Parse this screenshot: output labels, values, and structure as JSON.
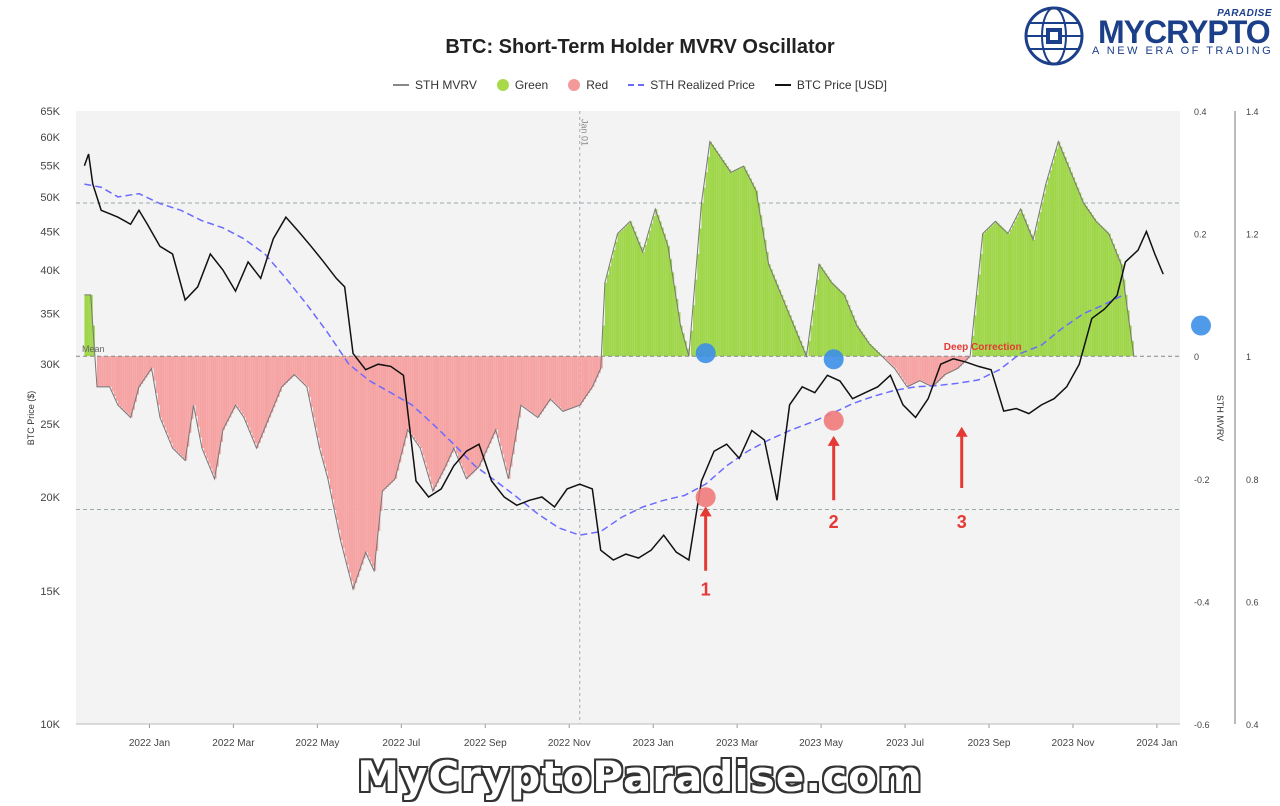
{
  "chart_data": {
    "type": "area",
    "title": "BTC: Short-Term Holder MVRV Oscillator",
    "legend": [
      {
        "label": "STH MVRV",
        "color": "#888888",
        "kind": "line"
      },
      {
        "label": "Green",
        "color": "#a8d94a",
        "kind": "dot"
      },
      {
        "label": "Red",
        "color": "#f4999a",
        "kind": "dot"
      },
      {
        "label": "STH Realized Price",
        "color": "#6b6bff",
        "kind": "dash"
      },
      {
        "label": "BTC Price [USD]",
        "color": "#111111",
        "kind": "line"
      }
    ],
    "legend_position": "top-center",
    "x_ticks": [
      "2022 Jan",
      "2022 Mar",
      "2022 May",
      "2022 Jul",
      "2022 Sep",
      "2022 Nov",
      "2023 Jan",
      "2023 Mar",
      "2023 May",
      "2023 Jul",
      "2023 Sep",
      "2023 Nov",
      "2024 Jan"
    ],
    "y_left": {
      "label": "BTC Price ($)",
      "scale": "log",
      "range": [
        10000,
        65000
      ],
      "ticks": [
        {
          "v": 10000,
          "t": "10K"
        },
        {
          "v": 15000,
          "t": "15K"
        },
        {
          "v": 20000,
          "t": "20K"
        },
        {
          "v": 25000,
          "t": "25K"
        },
        {
          "v": 30000,
          "t": "30K"
        },
        {
          "v": 35000,
          "t": "35K"
        },
        {
          "v": 40000,
          "t": "40K"
        },
        {
          "v": 45000,
          "t": "45K"
        },
        {
          "v": 50000,
          "t": "50K"
        },
        {
          "v": 55000,
          "t": "55K"
        },
        {
          "v": 60000,
          "t": "60K"
        },
        {
          "v": 65000,
          "t": "65K"
        }
      ]
    },
    "y_right_oscillator": {
      "label": "STH MVRV",
      "range": [
        -0.6,
        0.4
      ],
      "ticks": [
        "0.4",
        "0.2",
        "0",
        "-0.2",
        "-0.4",
        "-0.6"
      ]
    },
    "y_right_ratio": {
      "range": [
        0.4,
        1.4
      ],
      "ticks": [
        "1.4",
        "1.2",
        "1",
        "0.8",
        "0.6",
        "0.4"
      ]
    },
    "reference_lines": {
      "upper": 0.25,
      "mean": 0,
      "lower": -0.25,
      "mean_label": "Mean"
    },
    "vertical_marker": {
      "x": 12.0,
      "label": "Jan 01"
    },
    "sth_mvrv": [
      [
        0.2,
        0.1
      ],
      [
        0.35,
        0.1
      ],
      [
        0.5,
        -0.05
      ],
      [
        0.8,
        -0.05
      ],
      [
        1.0,
        -0.08
      ],
      [
        1.3,
        -0.1
      ],
      [
        1.5,
        -0.05
      ],
      [
        1.8,
        -0.02
      ],
      [
        2.0,
        -0.1
      ],
      [
        2.3,
        -0.15
      ],
      [
        2.6,
        -0.17
      ],
      [
        2.8,
        -0.08
      ],
      [
        3.0,
        -0.15
      ],
      [
        3.3,
        -0.2
      ],
      [
        3.5,
        -0.12
      ],
      [
        3.8,
        -0.08
      ],
      [
        4.0,
        -0.1
      ],
      [
        4.3,
        -0.15
      ],
      [
        4.6,
        -0.1
      ],
      [
        4.9,
        -0.05
      ],
      [
        5.2,
        -0.03
      ],
      [
        5.5,
        -0.05
      ],
      [
        5.8,
        -0.15
      ],
      [
        6.0,
        -0.2
      ],
      [
        6.3,
        -0.3
      ],
      [
        6.6,
        -0.38
      ],
      [
        6.9,
        -0.32
      ],
      [
        7.1,
        -0.35
      ],
      [
        7.3,
        -0.22
      ],
      [
        7.6,
        -0.2
      ],
      [
        7.9,
        -0.12
      ],
      [
        8.2,
        -0.15
      ],
      [
        8.5,
        -0.22
      ],
      [
        8.8,
        -0.18
      ],
      [
        9.0,
        -0.15
      ],
      [
        9.3,
        -0.2
      ],
      [
        9.6,
        -0.18
      ],
      [
        10.0,
        -0.12
      ],
      [
        10.3,
        -0.2
      ],
      [
        10.6,
        -0.08
      ],
      [
        11.0,
        -0.1
      ],
      [
        11.3,
        -0.07
      ],
      [
        11.6,
        -0.09
      ],
      [
        12.0,
        -0.08
      ],
      [
        12.3,
        -0.05
      ],
      [
        12.5,
        -0.02
      ],
      [
        12.6,
        0.12
      ],
      [
        12.9,
        0.2
      ],
      [
        13.2,
        0.22
      ],
      [
        13.5,
        0.17
      ],
      [
        13.8,
        0.24
      ],
      [
        14.1,
        0.18
      ],
      [
        14.4,
        0.05
      ],
      [
        14.6,
        0.0
      ],
      [
        14.9,
        0.25
      ],
      [
        15.1,
        0.35
      ],
      [
        15.3,
        0.33
      ],
      [
        15.6,
        0.3
      ],
      [
        15.9,
        0.31
      ],
      [
        16.2,
        0.27
      ],
      [
        16.5,
        0.15
      ],
      [
        16.8,
        0.1
      ],
      [
        17.1,
        0.05
      ],
      [
        17.4,
        0.0
      ],
      [
        17.7,
        0.15
      ],
      [
        18.0,
        0.12
      ],
      [
        18.3,
        0.1
      ],
      [
        18.6,
        0.05
      ],
      [
        18.9,
        0.02
      ],
      [
        19.2,
        0.0
      ],
      [
        19.5,
        -0.02
      ],
      [
        19.8,
        -0.05
      ],
      [
        20.1,
        -0.04
      ],
      [
        20.4,
        -0.05
      ],
      [
        20.7,
        -0.03
      ],
      [
        21.0,
        -0.02
      ],
      [
        21.3,
        0.0
      ],
      [
        21.6,
        0.2
      ],
      [
        21.9,
        0.22
      ],
      [
        22.2,
        0.2
      ],
      [
        22.5,
        0.24
      ],
      [
        22.8,
        0.19
      ],
      [
        23.1,
        0.28
      ],
      [
        23.4,
        0.35
      ],
      [
        23.7,
        0.3
      ],
      [
        24.0,
        0.25
      ],
      [
        24.3,
        0.22
      ],
      [
        24.6,
        0.2
      ],
      [
        24.9,
        0.15
      ],
      [
        25.2,
        0.0
      ]
    ],
    "sth_realized_price": [
      [
        0.2,
        52000
      ],
      [
        0.6,
        51500
      ],
      [
        1.0,
        50000
      ],
      [
        1.5,
        50500
      ],
      [
        2.0,
        49000
      ],
      [
        2.5,
        48000
      ],
      [
        3.0,
        46500
      ],
      [
        3.5,
        45500
      ],
      [
        4.0,
        44000
      ],
      [
        4.5,
        42000
      ],
      [
        5.0,
        39000
      ],
      [
        5.5,
        36000
      ],
      [
        6.0,
        33000
      ],
      [
        6.5,
        30000
      ],
      [
        7.0,
        28500
      ],
      [
        7.5,
        27500
      ],
      [
        8.0,
        26500
      ],
      [
        8.5,
        25000
      ],
      [
        9.0,
        23500
      ],
      [
        9.5,
        22000
      ],
      [
        10.0,
        21000
      ],
      [
        10.5,
        20000
      ],
      [
        11.0,
        19000
      ],
      [
        11.5,
        18200
      ],
      [
        12.0,
        17800
      ],
      [
        12.5,
        18000
      ],
      [
        13.0,
        18800
      ],
      [
        13.5,
        19400
      ],
      [
        14.0,
        19800
      ],
      [
        14.5,
        20100
      ],
      [
        15.0,
        20800
      ],
      [
        15.5,
        22000
      ],
      [
        16.0,
        23000
      ],
      [
        16.5,
        23800
      ],
      [
        17.0,
        24500
      ],
      [
        17.5,
        25100
      ],
      [
        18.0,
        25800
      ],
      [
        18.5,
        26600
      ],
      [
        19.0,
        27200
      ],
      [
        19.5,
        27700
      ],
      [
        20.0,
        28000
      ],
      [
        20.5,
        28100
      ],
      [
        21.0,
        28300
      ],
      [
        21.5,
        28600
      ],
      [
        22.0,
        29500
      ],
      [
        22.5,
        31000
      ],
      [
        23.0,
        31800
      ],
      [
        23.5,
        33500
      ],
      [
        24.0,
        35000
      ],
      [
        24.5,
        36000
      ],
      [
        25.0,
        37200
      ]
    ],
    "btc_price": [
      [
        0.2,
        55000
      ],
      [
        0.3,
        57000
      ],
      [
        0.4,
        52000
      ],
      [
        0.6,
        48000
      ],
      [
        0.8,
        47500
      ],
      [
        1.0,
        47000
      ],
      [
        1.3,
        46000
      ],
      [
        1.5,
        48000
      ],
      [
        1.7,
        46000
      ],
      [
        2.0,
        43000
      ],
      [
        2.3,
        42000
      ],
      [
        2.6,
        36500
      ],
      [
        2.9,
        38000
      ],
      [
        3.2,
        42000
      ],
      [
        3.5,
        40000
      ],
      [
        3.8,
        37500
      ],
      [
        4.1,
        41000
      ],
      [
        4.4,
        39000
      ],
      [
        4.7,
        44000
      ],
      [
        5.0,
        47000
      ],
      [
        5.3,
        45000
      ],
      [
        5.6,
        43000
      ],
      [
        5.9,
        41000
      ],
      [
        6.2,
        39000
      ],
      [
        6.4,
        38000
      ],
      [
        6.6,
        31000
      ],
      [
        6.9,
        29500
      ],
      [
        7.2,
        30000
      ],
      [
        7.5,
        29800
      ],
      [
        7.8,
        29000
      ],
      [
        8.1,
        21000
      ],
      [
        8.4,
        20000
      ],
      [
        8.7,
        20500
      ],
      [
        9.0,
        22000
      ],
      [
        9.3,
        23000
      ],
      [
        9.6,
        23500
      ],
      [
        9.9,
        21000
      ],
      [
        10.2,
        20000
      ],
      [
        10.5,
        19500
      ],
      [
        10.8,
        19800
      ],
      [
        11.1,
        20000
      ],
      [
        11.4,
        19400
      ],
      [
        11.7,
        20500
      ],
      [
        12.0,
        20800
      ],
      [
        12.3,
        20500
      ],
      [
        12.5,
        17000
      ],
      [
        12.8,
        16500
      ],
      [
        13.1,
        16800
      ],
      [
        13.4,
        16600
      ],
      [
        13.7,
        17000
      ],
      [
        14.0,
        17800
      ],
      [
        14.3,
        16900
      ],
      [
        14.6,
        16500
      ],
      [
        14.9,
        21000
      ],
      [
        15.2,
        23000
      ],
      [
        15.5,
        23500
      ],
      [
        15.8,
        22500
      ],
      [
        16.1,
        24500
      ],
      [
        16.4,
        23800
      ],
      [
        16.7,
        19800
      ],
      [
        17.0,
        26500
      ],
      [
        17.3,
        28000
      ],
      [
        17.6,
        27500
      ],
      [
        17.9,
        29000
      ],
      [
        18.2,
        28500
      ],
      [
        18.5,
        27000
      ],
      [
        18.8,
        27500
      ],
      [
        19.1,
        28000
      ],
      [
        19.4,
        29000
      ],
      [
        19.7,
        26500
      ],
      [
        20.0,
        25500
      ],
      [
        20.3,
        27000
      ],
      [
        20.6,
        30000
      ],
      [
        20.9,
        30500
      ],
      [
        21.2,
        30200
      ],
      [
        21.5,
        29800
      ],
      [
        21.8,
        29500
      ],
      [
        22.1,
        26000
      ],
      [
        22.4,
        26200
      ],
      [
        22.7,
        25800
      ],
      [
        23.0,
        26500
      ],
      [
        23.3,
        27000
      ],
      [
        23.6,
        28000
      ],
      [
        23.9,
        30000
      ],
      [
        24.2,
        34500
      ],
      [
        24.5,
        35500
      ],
      [
        24.8,
        37000
      ],
      [
        25.0,
        41000
      ],
      [
        25.3,
        42500
      ],
      [
        25.5,
        45000
      ],
      [
        25.7,
        42000
      ],
      [
        25.9,
        39500
      ]
    ],
    "annotations": [
      {
        "text": "Deep Correction",
        "x": 21.6,
        "y": 0.01,
        "color": "#e53935"
      },
      {
        "text": "1",
        "x": 15.0,
        "y": -0.39,
        "color": "#e53935"
      },
      {
        "text": "2",
        "x": 18.05,
        "y": -0.28,
        "color": "#e53935"
      },
      {
        "text": "3",
        "x": 21.1,
        "y": -0.28,
        "color": "#e53935"
      }
    ],
    "markers": [
      {
        "type": "blue",
        "x": 15.0,
        "y": 0.005
      },
      {
        "type": "blue",
        "x": 18.05,
        "y": -0.005
      },
      {
        "type": "blue",
        "x": 26.8,
        "y": 0.05
      },
      {
        "type": "red",
        "x": 15.0,
        "y": -0.23
      },
      {
        "type": "red",
        "x": 18.05,
        "y": -0.105
      }
    ],
    "colors": {
      "positive": "#9fd64a",
      "positive_edge": "#3aa52a",
      "negative": "#f6a3a3",
      "negative_edge": "#e55a5a",
      "realized": "#6b6bff",
      "price": "#111111",
      "marker_blue": "#3d8fe8",
      "marker_red": "#f07a7a"
    }
  },
  "logo": {
    "brand": "MYCRYPTO",
    "paradise": "PARADISE",
    "tagline": "A NEW ERA OF TRADING"
  },
  "watermark": "MyCryptoParadise.com"
}
